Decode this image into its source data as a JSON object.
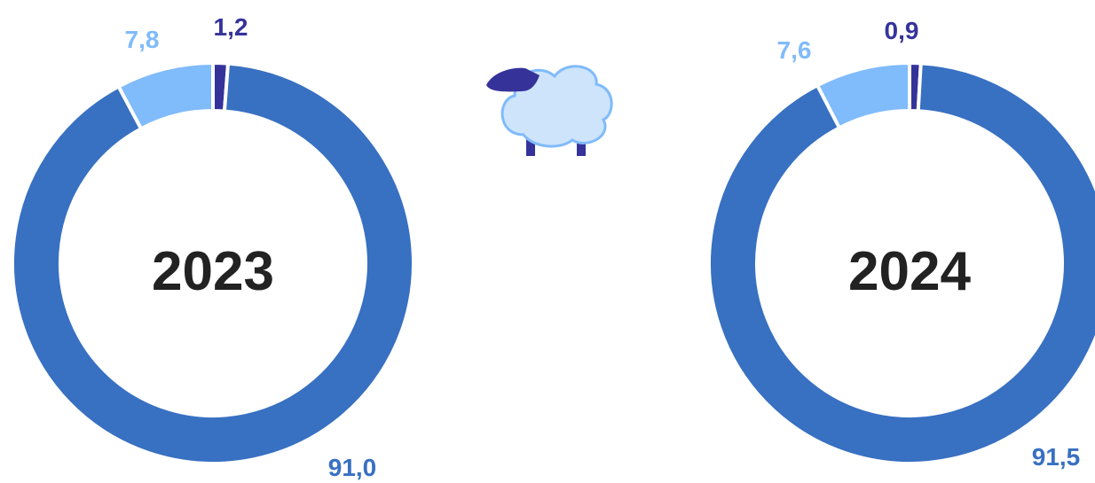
{
  "chart_data": [
    {
      "type": "pie",
      "center_label": "2023",
      "slices": [
        {
          "value": 1.2,
          "label": "1,2",
          "color": "#35339a"
        },
        {
          "value": 91.0,
          "label": "91,0",
          "color": "#3870c2"
        },
        {
          "value": 7.8,
          "label": "7,8",
          "color": "#80bbfb"
        }
      ]
    },
    {
      "type": "pie",
      "center_label": "2024",
      "slices": [
        {
          "value": 0.9,
          "label": "0,9",
          "color": "#35339a"
        },
        {
          "value": 91.5,
          "label": "91,5",
          "color": "#3870c2"
        },
        {
          "value": 7.6,
          "label": "7,6",
          "color": "#80bbfb"
        }
      ]
    }
  ],
  "icons": {
    "sheep": {
      "name": "sheep-icon",
      "body_color": "#cde4fb",
      "outline_color": "#80bbfb",
      "head_color": "#35339a"
    }
  }
}
